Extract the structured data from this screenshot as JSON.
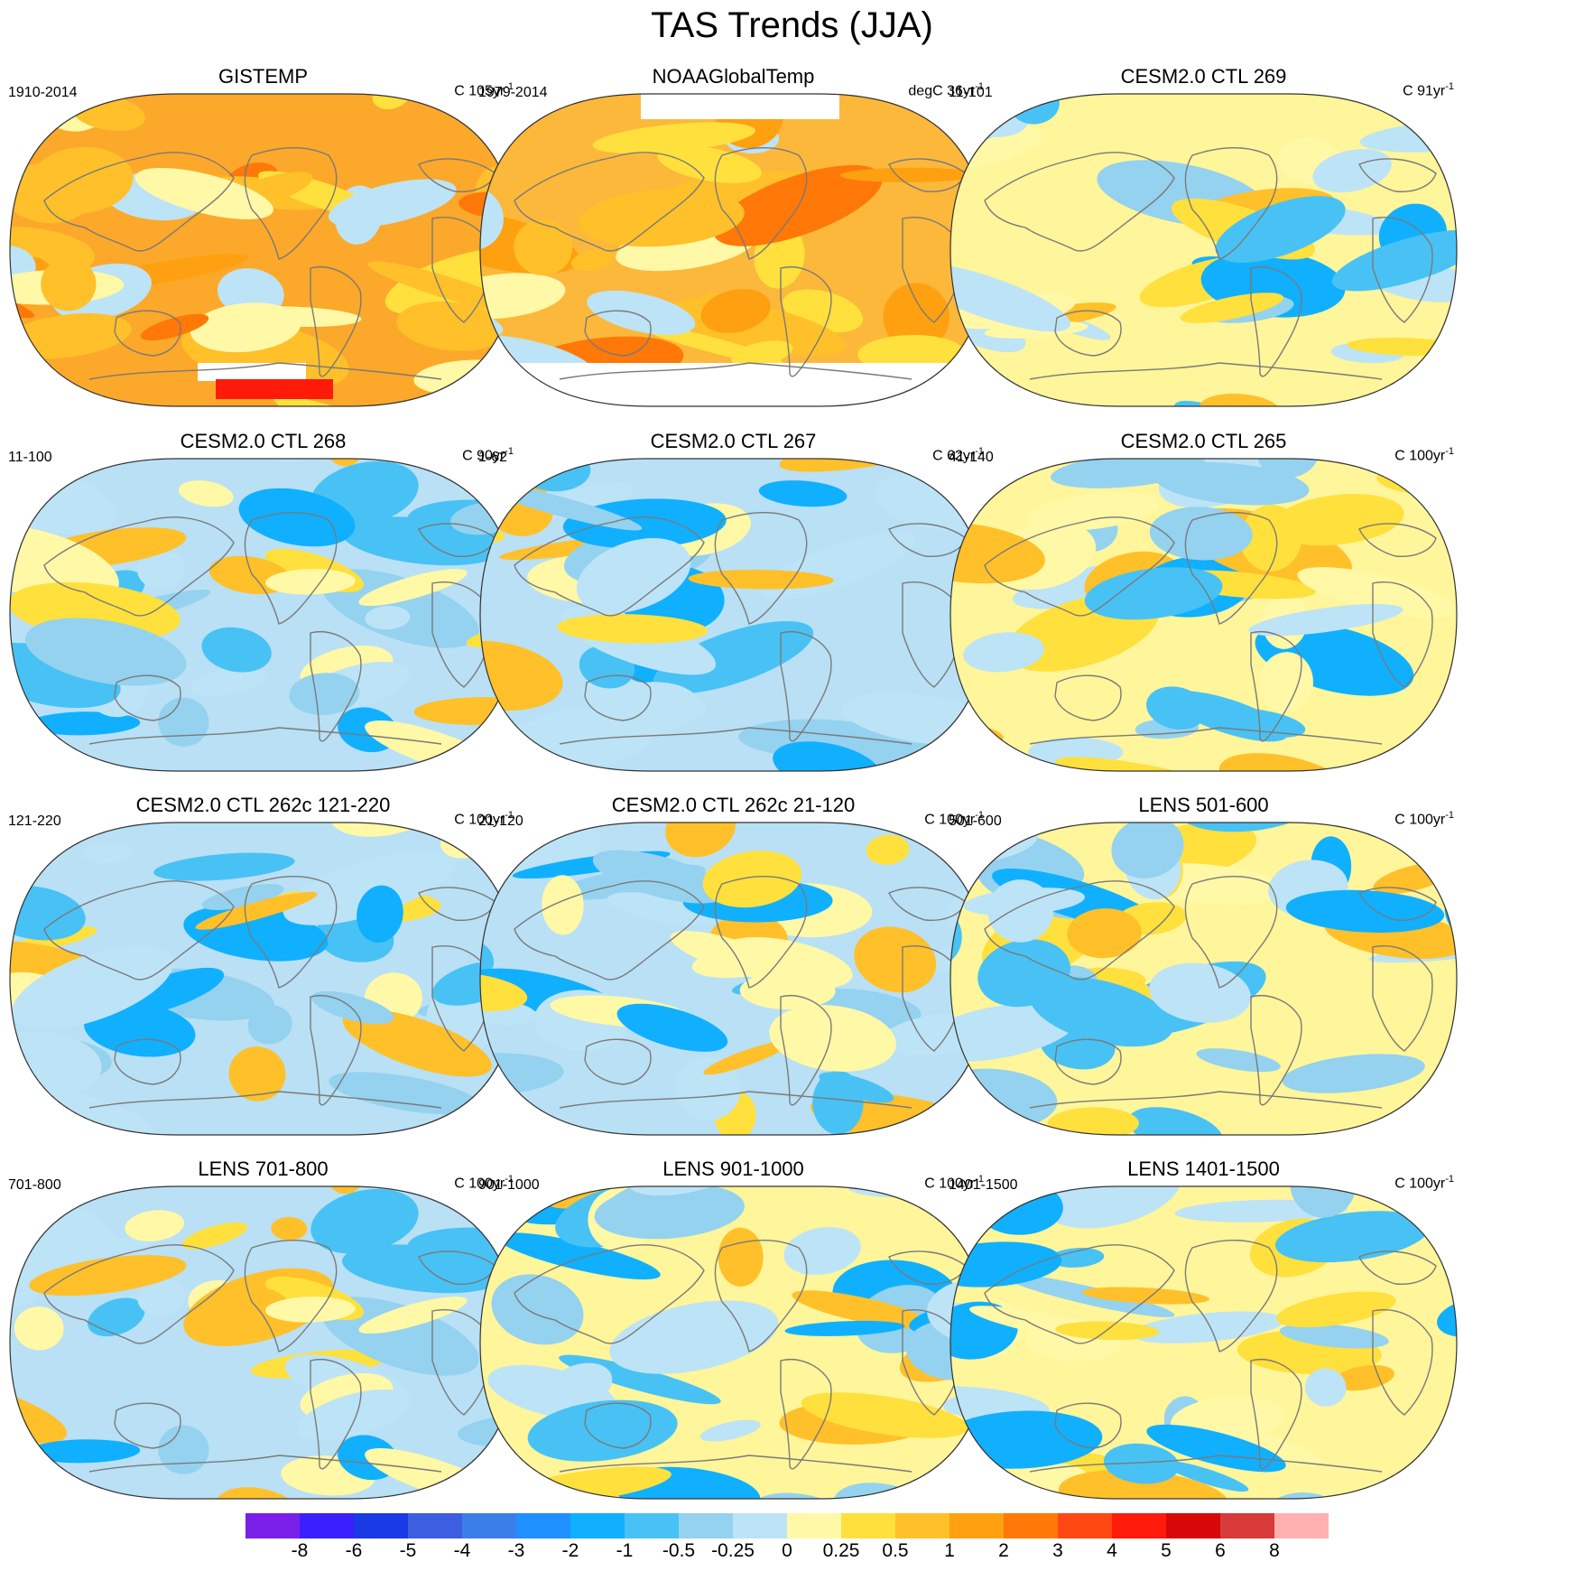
{
  "title": "TAS Trends (JJA)",
  "colors": {
    "coast": "#7a7a7a",
    "missing": "#ffffff",
    "outline": "#333333"
  },
  "panels": [
    {
      "title": "GISTEMP",
      "left": "1910-2014",
      "units": "C 105yr",
      "sup": "-1",
      "base": "#fca82a"
    },
    {
      "title": "NOAAGlobalTemp",
      "left": "1979-2014",
      "units": "degC 36yr",
      "sup": "-1",
      "base": "#fcb83a"
    },
    {
      "title": "CESM2.0 CTL 269",
      "left": "11-101",
      "units": "C 91yr",
      "sup": "-1",
      "base": "#fff59a"
    },
    {
      "title": "CESM2.0 CTL 268",
      "left": "11-100",
      "units": "C 90yr",
      "sup": "-1",
      "base": "#b9e0f5"
    },
    {
      "title": "CESM2.0 CTL 267",
      "left": "1-62",
      "units": "C 62yr",
      "sup": "-1",
      "base": "#b9e0f5"
    },
    {
      "title": "CESM2.0 CTL 265",
      "left": "41-140",
      "units": "C 100yr",
      "sup": "-1",
      "base": "#fff59a"
    },
    {
      "title": "CESM2.0 CTL 262c 121-220",
      "left": "121-220",
      "units": "C 100yr",
      "sup": "-1",
      "base": "#b9e0f5"
    },
    {
      "title": "CESM2.0 CTL 262c 21-120",
      "left": "21-120",
      "units": "C 100yr",
      "sup": "-1",
      "base": "#b9e0f5"
    },
    {
      "title": "LENS 501-600",
      "left": "501-600",
      "units": "C 100yr",
      "sup": "-1",
      "base": "#fff59a"
    },
    {
      "title": "LENS 701-800",
      "left": "701-800",
      "units": "C 100yr",
      "sup": "-1",
      "base": "#b9e0f5"
    },
    {
      "title": "LENS 901-1000",
      "left": "901-1000",
      "units": "C 100yr",
      "sup": "-1",
      "base": "#fff59a"
    },
    {
      "title": "LENS 1401-1500",
      "left": "1401-1500",
      "units": "C 100yr",
      "sup": "-1",
      "base": "#fff59a"
    }
  ],
  "chart_data": {
    "type": "heatmap",
    "title": "TAS Trends (JJA)",
    "projection": "Robinson-like global map (Pacific-centered)",
    "variable": "Surface air temperature trend",
    "colorbar": {
      "levels": [
        -8,
        -6,
        -5,
        -4,
        -3,
        -2,
        -1,
        -0.5,
        -0.25,
        0,
        0.25,
        0.5,
        1,
        2,
        3,
        4,
        5,
        6,
        8
      ],
      "labels": [
        "-8",
        "-6",
        "-5",
        "-4",
        "-3",
        "-2",
        "-1",
        "-0.5",
        "-0.25",
        "0",
        "0.25",
        "0.5",
        "1",
        "2",
        "3",
        "4",
        "5",
        "6",
        "8"
      ],
      "colors": [
        "#7a1fe8",
        "#3a1fff",
        "#1a3ae6",
        "#3d5ee0",
        "#3c7ee8",
        "#1e90ff",
        "#10b0ff",
        "#48c2f5",
        "#94d2ef",
        "#bde3f6",
        "#fff8a6",
        "#ffe03c",
        "#ffc02a",
        "#ffa010",
        "#ff7808",
        "#ff4812",
        "#ff1a0a",
        "#d80808",
        "#d83a3a",
        "#ffb0b0"
      ]
    }
  }
}
